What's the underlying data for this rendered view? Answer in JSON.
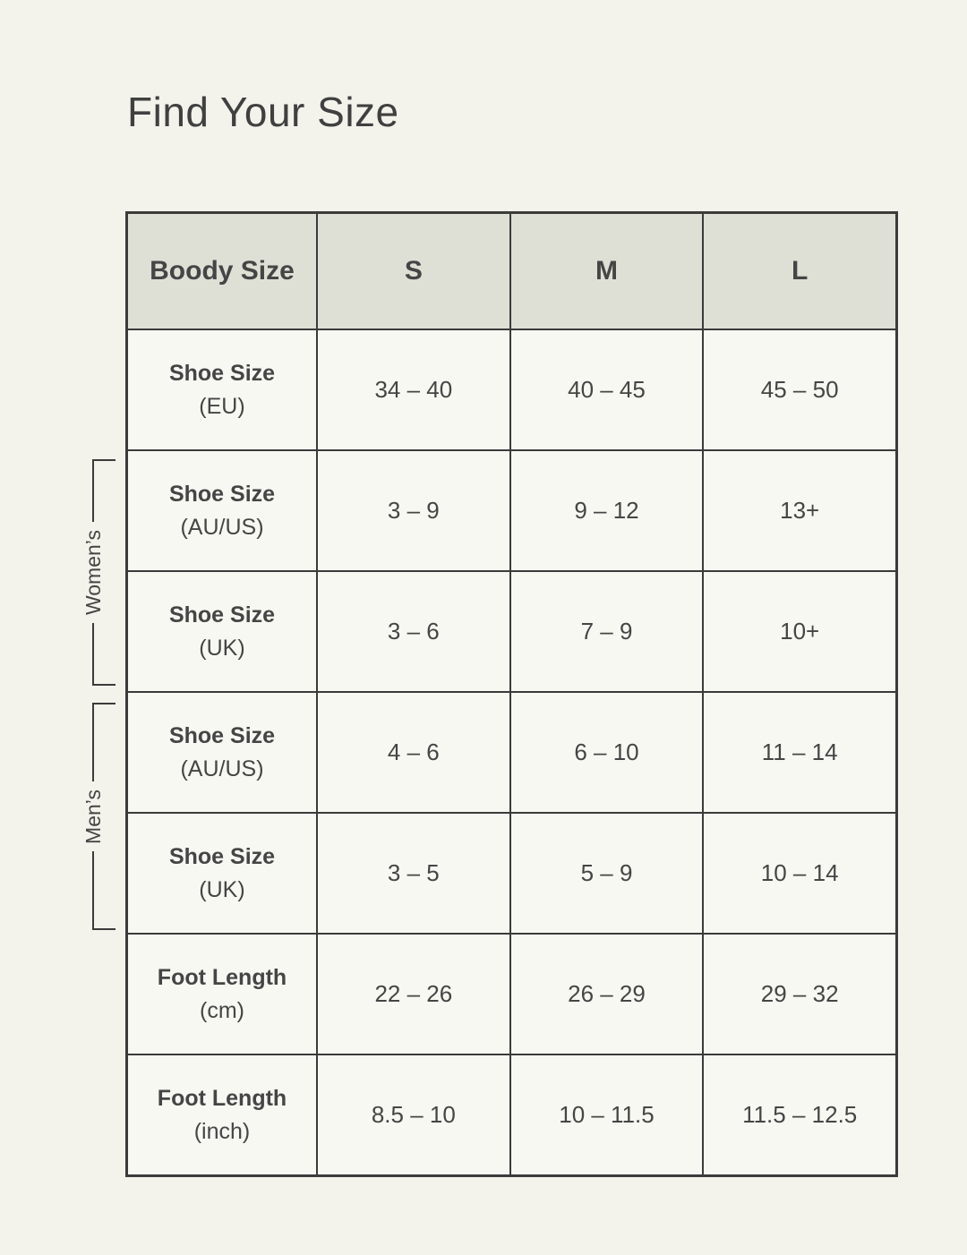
{
  "page": {
    "title": "Find Your Size"
  },
  "colors": {
    "page_background": "#f3f3ec",
    "table_background": "#f8f8f2",
    "header_background": "#dee0d6",
    "border": "#3b3b3b",
    "text": "#454545"
  },
  "groups": {
    "womens": "Women’s",
    "mens": "Men’s"
  },
  "table": {
    "corner_label": "Boody Size",
    "size_columns": [
      "S",
      "M",
      "L"
    ],
    "rows": [
      {
        "label": "Shoe Size",
        "unit": "(EU)",
        "values": [
          "34 – 40",
          "40 – 45",
          "45 – 50"
        ]
      },
      {
        "label": "Shoe Size",
        "unit": "(AU/US)",
        "values": [
          "3 – 9",
          "9 – 12",
          "13+"
        ]
      },
      {
        "label": "Shoe Size",
        "unit": "(UK)",
        "values": [
          "3 – 6",
          "7 – 9",
          "10+"
        ]
      },
      {
        "label": "Shoe Size",
        "unit": "(AU/US)",
        "values": [
          "4 – 6",
          "6 – 10",
          "11 – 14"
        ]
      },
      {
        "label": "Shoe Size",
        "unit": "(UK)",
        "values": [
          "3 – 5",
          "5 – 9",
          "10 – 14"
        ]
      },
      {
        "label": "Foot Length",
        "unit": "(cm)",
        "values": [
          "22 – 26",
          "26 – 29",
          "29 – 32"
        ]
      },
      {
        "label": "Foot Length",
        "unit": "(inch)",
        "values": [
          "8.5 – 10",
          "10 – 11.5",
          "11.5 – 12.5"
        ]
      }
    ]
  }
}
